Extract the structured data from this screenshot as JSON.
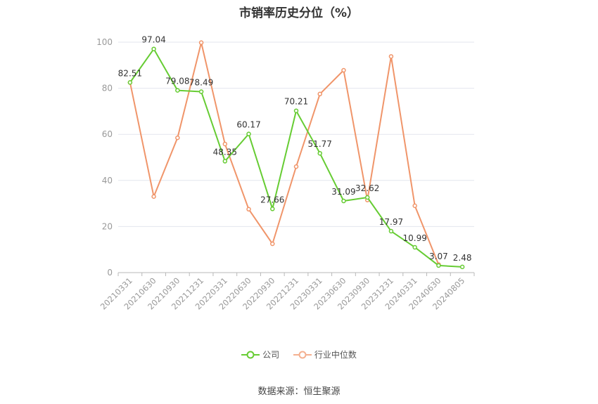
{
  "chart_data": {
    "type": "line",
    "title": "市销率历史分位（%）",
    "categories": [
      "20210331",
      "20210630",
      "20210930",
      "20211231",
      "20220331",
      "20220630",
      "20220930",
      "20221231",
      "20230331",
      "20230630",
      "20230930",
      "20231231",
      "20240331",
      "20240630",
      "20240805"
    ],
    "series": [
      {
        "name": "公司",
        "color": "#66cc33",
        "values": [
          82.51,
          97.04,
          79.08,
          78.49,
          48.35,
          60.17,
          27.66,
          70.21,
          51.77,
          31.09,
          32.62,
          17.97,
          10.99,
          3.07,
          2.48
        ],
        "labels": [
          "82.51",
          "97.04",
          "79.08",
          "78.49",
          "48.35",
          "60.17",
          "27.66",
          "70.21",
          "51.77",
          "31.09",
          "32.62",
          "17.97",
          "10.99",
          "3.07",
          "2.48"
        ]
      },
      {
        "name": "行业中位数",
        "color": "#f0956a",
        "values": [
          82.5,
          33.0,
          58.5,
          99.8,
          55.8,
          27.5,
          12.5,
          46.0,
          77.5,
          87.8,
          31.5,
          93.8,
          29.0,
          3.5,
          null
        ]
      }
    ],
    "ylim": [
      0,
      100
    ],
    "yticks": [
      "0",
      "20",
      "40",
      "60",
      "80",
      "100"
    ],
    "grid": true,
    "legend_position": "bottom"
  },
  "source_text": "数据来源：恒生聚源"
}
